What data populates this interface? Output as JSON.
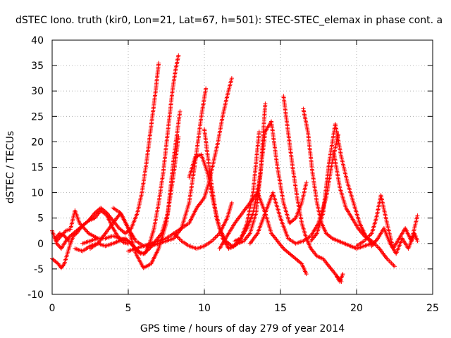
{
  "chart_data": {
    "type": "scatter",
    "title": "dSTEC Iono. truth (kir0, Lon=21, Lat=67, h=501): STEC-STEC_elemax in phase cont. a",
    "xlabel": "GPS time / hours of day 279 of year 2014",
    "ylabel": "dSTEC  / TECUs",
    "xlim": [
      0,
      25
    ],
    "ylim": [
      -10,
      40
    ],
    "x_ticks": [
      0,
      5,
      10,
      15,
      20,
      25
    ],
    "y_ticks": [
      -10,
      -5,
      0,
      5,
      10,
      15,
      20,
      25,
      30,
      35,
      40
    ],
    "grid": true,
    "marker": "+",
    "color": "#ff0000",
    "series": [
      {
        "x": [
          0.0,
          0.3,
          0.6,
          0.9,
          1.2,
          1.6,
          2.0,
          2.4,
          2.8,
          3.2,
          3.6,
          4.0,
          4.4,
          4.8,
          5.2,
          5.6,
          5.9,
          6.2,
          6.5,
          6.8,
          7.0
        ],
        "y": [
          2.5,
          0.0,
          -1.0,
          0.5,
          1.5,
          2.5,
          3.5,
          4.5,
          6.0,
          7.0,
          6.0,
          4.5,
          3.0,
          2.0,
          3.0,
          6.0,
          10.0,
          16.0,
          23.0,
          30.0,
          35.5
        ]
      },
      {
        "x": [
          0.0,
          0.2,
          0.4,
          0.6,
          0.8,
          1.0,
          1.2,
          1.4,
          1.6,
          2.0,
          2.4,
          2.8,
          3.2,
          3.6,
          4.0,
          4.4,
          4.7,
          5.0
        ],
        "y": [
          -3.0,
          -3.5,
          -4.0,
          -4.8,
          -4.0,
          -2.0,
          0.0,
          1.5,
          2.0,
          3.5,
          4.5,
          5.0,
          6.5,
          5.5,
          3.0,
          1.0,
          0.2,
          0.0
        ]
      },
      {
        "x": [
          0.3,
          0.6,
          0.9,
          1.2,
          1.5,
          1.8,
          2.1,
          2.4,
          2.7,
          3.0
        ],
        "y": [
          0.5,
          1.5,
          2.5,
          2.8,
          6.5,
          4.0,
          3.0,
          2.0,
          1.5,
          1.0
        ]
      },
      {
        "x": [
          1.5,
          2.0,
          2.5,
          3.0,
          3.5,
          4.0,
          4.4,
          4.8,
          5.2,
          5.6,
          6.0,
          6.4,
          6.8,
          7.2,
          7.6,
          8.0,
          8.4
        ],
        "y": [
          -1.0,
          -1.5,
          -0.5,
          0.0,
          -0.5,
          0.0,
          0.5,
          1.0,
          0.0,
          -1.5,
          -2.0,
          -1.0,
          0.5,
          2.0,
          6.0,
          17.0,
          26.0
        ]
      },
      {
        "x": [
          2.0,
          2.5,
          3.0,
          3.5,
          4.0,
          4.5,
          5.0,
          5.5,
          5.8,
          6.1,
          6.4,
          6.7,
          7.0,
          7.3,
          7.6,
          7.9,
          8.1,
          8.3
        ],
        "y": [
          0.0,
          0.5,
          1.0,
          1.0,
          1.5,
          1.0,
          0.5,
          -1.0,
          -2.0,
          -2.0,
          0.0,
          3.0,
          8.0,
          14.0,
          22.0,
          30.0,
          34.0,
          37.0
        ]
      },
      {
        "x": [
          2.5,
          3.0,
          3.5,
          4.0,
          4.5,
          5.0,
          5.5,
          6.0,
          6.5,
          7.0,
          7.5,
          8.0,
          8.3
        ],
        "y": [
          -1.0,
          0.0,
          2.0,
          4.0,
          6.0,
          3.0,
          -2.0,
          -4.8,
          -4.0,
          -1.0,
          4.0,
          14.0,
          21.0
        ]
      },
      {
        "x": [
          4.0,
          4.5,
          5.0,
          5.5,
          6.0,
          6.5,
          7.0,
          7.5,
          8.0,
          8.5,
          9.0,
          9.5,
          10.0,
          10.3,
          10.6,
          10.9,
          11.2,
          11.5,
          11.8
        ],
        "y": [
          7.0,
          6.0,
          3.0,
          0.5,
          -0.5,
          0.0,
          0.5,
          1.0,
          2.0,
          3.0,
          4.0,
          7.0,
          9.0,
          12.0,
          16.0,
          20.0,
          25.0,
          29.0,
          32.5
        ]
      },
      {
        "x": [
          5.0,
          5.5,
          6.0,
          6.5,
          7.0,
          7.5,
          8.0,
          8.5,
          9.0,
          9.4,
          9.8,
          10.1
        ],
        "y": [
          -1.5,
          -1.0,
          -0.5,
          -0.5,
          0.0,
          0.5,
          1.0,
          3.0,
          8.0,
          16.0,
          25.0,
          30.5
        ]
      },
      {
        "x": [
          8.0,
          8.5,
          9.0,
          9.5,
          10.0,
          10.5,
          11.0,
          11.5,
          11.8
        ],
        "y": [
          2.0,
          0.5,
          -0.5,
          -1.0,
          -0.5,
          0.5,
          2.0,
          5.0,
          8.0
        ]
      },
      {
        "x": [
          9.0,
          9.4,
          9.8,
          10.2,
          10.6,
          11.0,
          11.4,
          11.8,
          12.2,
          12.6,
          13.0,
          13.4,
          13.7,
          14.0
        ],
        "y": [
          13.0,
          17.0,
          17.5,
          14.0,
          8.0,
          3.0,
          0.5,
          -0.5,
          0.0,
          0.5,
          2.0,
          6.0,
          14.0,
          27.5
        ]
      },
      {
        "x": [
          10.0,
          10.4,
          10.8,
          11.2,
          11.6,
          12.0,
          12.4,
          12.8,
          13.2,
          13.6
        ],
        "y": [
          22.5,
          13.0,
          5.0,
          1.0,
          -1.0,
          -0.5,
          1.0,
          4.0,
          10.0,
          22.0
        ]
      },
      {
        "x": [
          11.0,
          11.5,
          12.0,
          12.5,
          13.0,
          13.5,
          14.0,
          14.4,
          14.8,
          15.2,
          15.6,
          16.0,
          16.4,
          16.7
        ],
        "y": [
          -1.0,
          1.5,
          4.0,
          6.0,
          8.0,
          10.0,
          6.0,
          2.0,
          0.5,
          -1.0,
          -2.0,
          -3.0,
          -4.0,
          -6.0
        ]
      },
      {
        "x": [
          12.0,
          12.4,
          12.8,
          13.2,
          13.6,
          14.0,
          14.4,
          14.8,
          15.2,
          15.6,
          16.0,
          16.4,
          16.7
        ],
        "y": [
          0.5,
          1.0,
          3.0,
          6.0,
          12.0,
          22.0,
          24.0,
          15.0,
          8.0,
          4.0,
          5.0,
          8.0,
          12.0
        ]
      },
      {
        "x": [
          13.0,
          13.5,
          14.0,
          14.5,
          15.0,
          15.5,
          16.0,
          16.5,
          17.0,
          17.5,
          18.0,
          18.4,
          18.8
        ],
        "y": [
          0.0,
          2.0,
          6.0,
          10.0,
          5.0,
          1.0,
          0.0,
          0.5,
          1.5,
          4.0,
          9.0,
          16.0,
          21.5
        ]
      },
      {
        "x": [
          15.2,
          15.5,
          15.8,
          16.1,
          16.4,
          16.7,
          17.0,
          17.4,
          17.8,
          18.2,
          18.6,
          19.0
        ],
        "y": [
          29.0,
          22.0,
          15.0,
          9.0,
          4.0,
          1.0,
          -1.0,
          -2.5,
          -3.0,
          -4.5,
          -6.0,
          -7.5
        ]
      },
      {
        "x": [
          16.5,
          16.8,
          17.1,
          17.4,
          17.7,
          18.0,
          18.4,
          18.8,
          19.2,
          19.6,
          20.0,
          20.5,
          21.0
        ],
        "y": [
          26.5,
          22.0,
          14.0,
          8.0,
          4.0,
          2.0,
          1.0,
          0.5,
          0.0,
          -0.5,
          -1.0,
          -0.5,
          0.0
        ]
      },
      {
        "x": [
          17.0,
          17.4,
          17.8,
          18.2,
          18.6,
          19.0,
          19.4,
          19.8,
          20.2,
          20.6,
          21.0
        ],
        "y": [
          0.5,
          2.0,
          6.0,
          16.0,
          23.5,
          17.0,
          12.0,
          8.0,
          4.0,
          1.5,
          0.0
        ]
      },
      {
        "x": [
          18.5,
          18.9,
          19.3,
          19.7,
          20.1,
          20.5,
          21.0,
          21.5,
          22.0,
          22.5
        ],
        "y": [
          18.0,
          11.0,
          7.0,
          5.0,
          3.0,
          1.5,
          0.5,
          -1.0,
          -3.0,
          -4.5
        ]
      },
      {
        "x": [
          20.0,
          20.5,
          21.0,
          21.3,
          21.6,
          22.0,
          22.4,
          22.8,
          23.2,
          23.6,
          24.0
        ],
        "y": [
          -0.5,
          0.5,
          2.0,
          5.0,
          9.5,
          4.0,
          -1.0,
          1.0,
          3.0,
          0.5,
          5.5
        ]
      },
      {
        "x": [
          21.0,
          21.4,
          21.8,
          22.2,
          22.6,
          23.0,
          23.4,
          23.8,
          24.0
        ],
        "y": [
          -0.5,
          1.0,
          3.0,
          0.0,
          -2.0,
          1.0,
          -1.0,
          2.0,
          0.5
        ]
      },
      {
        "x": [
          18.7,
          18.9,
          19.1
        ],
        "y": [
          -6.5,
          -7.5,
          -6.0
        ]
      },
      {
        "x": [
          0.2,
          0.5,
          0.8,
          1.1
        ],
        "y": [
          1.0,
          2.0,
          1.5,
          0.5
        ]
      }
    ]
  }
}
